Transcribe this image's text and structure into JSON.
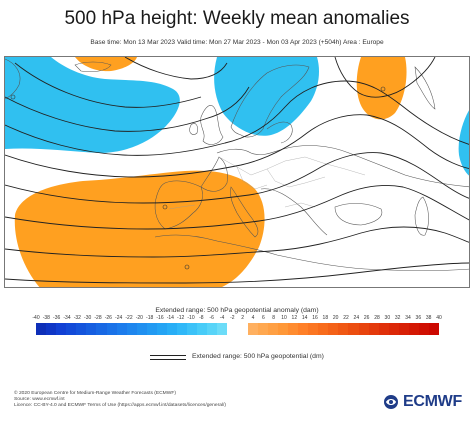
{
  "title": "500 hPa height: Weekly mean anomalies",
  "subtitle": "Base time: Mon 13 Mar 2023 Valid time: Mon 27 Mar 2023 - Mon 03 Apr 2023 (+504h) Area : Europe",
  "colorbar": {
    "title": "Extended range: 500 hPa geopotential anomaly (dam)",
    "ticks": [
      "-40",
      "-38",
      "-36",
      "-34",
      "-32",
      "-30",
      "-28",
      "-26",
      "-24",
      "-22",
      "-20",
      "-18",
      "-16",
      "-14",
      "-12",
      "-10",
      "-8",
      "-6",
      "-4",
      "-2",
      "2",
      "4",
      "6",
      "8",
      "10",
      "12",
      "14",
      "16",
      "18",
      "20",
      "22",
      "24",
      "26",
      "28",
      "30",
      "32",
      "34",
      "36",
      "38",
      "40"
    ],
    "colors": [
      "#0e2fb8",
      "#0f36c6",
      "#1140d4",
      "#124ad8",
      "#1454dc",
      "#165ee0",
      "#1868e4",
      "#1a72e8",
      "#1c7cec",
      "#1e86ee",
      "#2090f0",
      "#229af2",
      "#24a4f4",
      "#28aef6",
      "#30b8f8",
      "#3cc2f8",
      "#48ccf8",
      "#58d4f8",
      "#6cdcf8",
      "#ffffff",
      "#ffffff",
      "#ffb060",
      "#ffa850",
      "#ffa044",
      "#ff9838",
      "#ff8c30",
      "#ff8028",
      "#fb7622",
      "#f86c1c",
      "#f46218",
      "#f05814",
      "#ec4e10",
      "#e8440e",
      "#e43a0c",
      "#e0300a",
      "#dc2808",
      "#d82006",
      "#d41804",
      "#d01002",
      "#cc0800"
    ]
  },
  "legend": {
    "contour_label": "Extended range: 500 hPa geopotential (dm)"
  },
  "footer": {
    "line1": "© 2020 European Centre for Medium-Range Weather Forecasts (ECMWF)",
    "line2": "Source: www.ecmwf.int",
    "line3": "Licence: CC-BY-4.0 and ECMWF Terms of Use (https://apps.ecmwf.int/datasets/licences/general/)"
  },
  "logo": {
    "text": "ECMWF",
    "color": "#1f3c88"
  },
  "map": {
    "positive_anomaly_color": "#ffa020",
    "negative_anomaly_color": "#30c0f0",
    "contour_color": "#222222",
    "coast_color": "#555555"
  }
}
